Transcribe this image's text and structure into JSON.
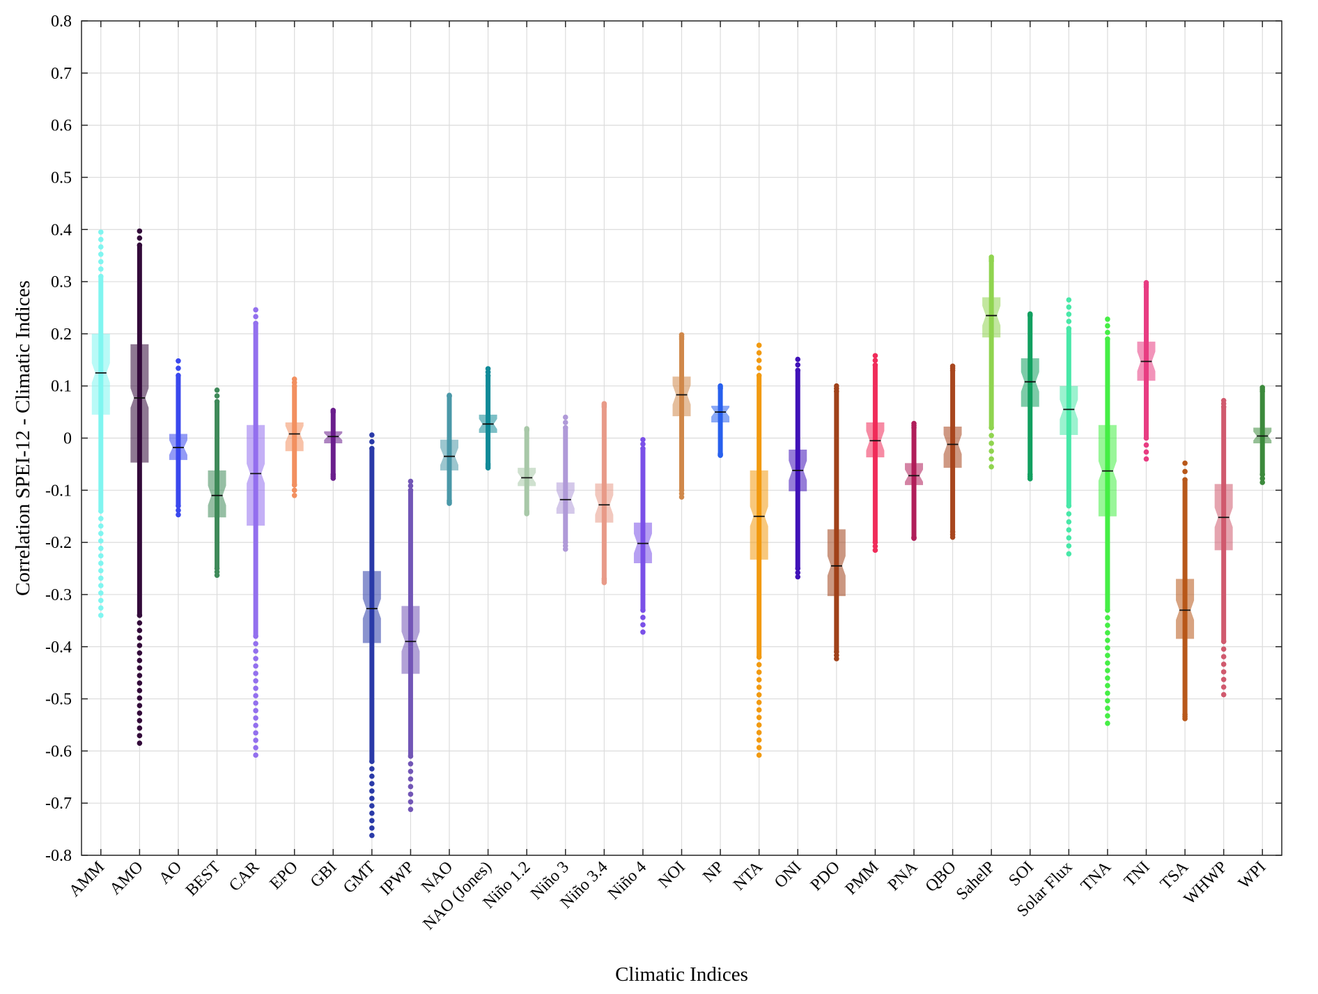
{
  "chart_data": {
    "type": "boxplot",
    "xlabel": "Climatic Indices",
    "ylabel": "Correlation SPEI-12 - Climatic Indices",
    "ylim": [
      -0.8,
      0.8
    ],
    "yticks": [
      -0.8,
      -0.7,
      -0.6,
      -0.5,
      -0.4,
      -0.3,
      -0.2,
      -0.1,
      0,
      0.1,
      0.2,
      0.3,
      0.4,
      0.5,
      0.6,
      0.7,
      0.8
    ],
    "ytick_labels": [
      "-0.8",
      "-0.7",
      "-0.6",
      "-0.5",
      "-0.4",
      "-0.3",
      "-0.2",
      "-0.1",
      "0",
      "0.1",
      "0.2",
      "0.3",
      "0.4",
      "0.5",
      "0.6",
      "0.7",
      "0.8"
    ],
    "grid": true,
    "series": [
      {
        "name": "AMM",
        "color": "#80f5f0",
        "min": -0.34,
        "q1": 0.045,
        "median": 0.125,
        "q3": 0.2,
        "max": 0.395,
        "dense_min": -0.14,
        "dense_max": 0.31
      },
      {
        "name": "AMO",
        "color": "#330a3a",
        "min": -0.585,
        "q1": -0.047,
        "median": 0.077,
        "q3": 0.18,
        "max": 0.397,
        "dense_min": -0.34,
        "dense_max": 0.37
      },
      {
        "name": "AO",
        "color": "#3a48ee",
        "min": -0.147,
        "q1": -0.042,
        "median": -0.018,
        "q3": 0.008,
        "max": 0.148,
        "dense_min": -0.13,
        "dense_max": 0.12
      },
      {
        "name": "BEST",
        "color": "#3f8a5a",
        "min": -0.263,
        "q1": -0.152,
        "median": -0.11,
        "q3": -0.062,
        "max": 0.092,
        "dense_min": -0.25,
        "dense_max": 0.07
      },
      {
        "name": "CAR",
        "color": "#9370ee",
        "min": -0.608,
        "q1": -0.168,
        "median": -0.068,
        "q3": 0.025,
        "max": 0.246,
        "dense_min": -0.38,
        "dense_max": 0.22
      },
      {
        "name": "EPO",
        "color": "#f29060",
        "min": -0.11,
        "q1": -0.025,
        "median": 0.008,
        "q3": 0.03,
        "max": 0.113,
        "dense_min": -0.09,
        "dense_max": 0.1
      },
      {
        "name": "GBI",
        "color": "#6a1e8c",
        "min": -0.077,
        "q1": -0.01,
        "median": 0.003,
        "q3": 0.013,
        "max": 0.053,
        "dense_min": -0.07,
        "dense_max": 0.05
      },
      {
        "name": "GMT",
        "color": "#2a3aa8",
        "min": -0.762,
        "q1": -0.393,
        "median": -0.327,
        "q3": -0.255,
        "max": 0.006,
        "dense_min": -0.62,
        "dense_max": -0.02
      },
      {
        "name": "IPWP",
        "color": "#7256b6",
        "min": -0.712,
        "q1": -0.452,
        "median": -0.39,
        "q3": -0.322,
        "max": -0.083,
        "dense_min": -0.61,
        "dense_max": -0.1
      },
      {
        "name": "NAO",
        "color": "#4a98a8",
        "min": -0.125,
        "q1": -0.062,
        "median": -0.035,
        "q3": -0.003,
        "max": 0.082,
        "dense_min": -0.12,
        "dense_max": 0.08
      },
      {
        "name": "NAO (Jones)",
        "color": "#108a98",
        "min": -0.057,
        "q1": 0.01,
        "median": 0.027,
        "q3": 0.045,
        "max": 0.133,
        "dense_min": -0.05,
        "dense_max": 0.12
      },
      {
        "name": "Niño 1.2",
        "color": "#a8c8a8",
        "min": -0.145,
        "q1": -0.092,
        "median": -0.076,
        "q3": -0.057,
        "max": 0.018,
        "dense_min": -0.14,
        "dense_max": 0.015
      },
      {
        "name": "Niño 3",
        "color": "#b09ad8",
        "min": -0.213,
        "q1": -0.145,
        "median": -0.118,
        "q3": -0.085,
        "max": 0.04,
        "dense_min": -0.2,
        "dense_max": 0.02
      },
      {
        "name": "Niño 3.4",
        "color": "#e89a88",
        "min": -0.277,
        "q1": -0.162,
        "median": -0.128,
        "q3": -0.087,
        "max": 0.066,
        "dense_min": -0.27,
        "dense_max": 0.06
      },
      {
        "name": "Niño 4",
        "color": "#7a50e8",
        "min": -0.372,
        "q1": -0.24,
        "median": -0.202,
        "q3": -0.162,
        "max": -0.003,
        "dense_min": -0.33,
        "dense_max": -0.02
      },
      {
        "name": "NOI",
        "color": "#d0884a",
        "min": -0.113,
        "q1": 0.042,
        "median": 0.083,
        "q3": 0.118,
        "max": 0.198,
        "dense_min": -0.1,
        "dense_max": 0.19
      },
      {
        "name": "NP",
        "color": "#2860ee",
        "min": -0.033,
        "q1": 0.03,
        "median": 0.05,
        "q3": 0.062,
        "max": 0.1,
        "dense_min": -0.03,
        "dense_max": 0.095
      },
      {
        "name": "NTA",
        "color": "#f29a10",
        "min": -0.608,
        "q1": -0.233,
        "median": -0.15,
        "q3": -0.062,
        "max": 0.178,
        "dense_min": -0.42,
        "dense_max": 0.12
      },
      {
        "name": "ONI",
        "color": "#4012b8",
        "min": -0.266,
        "q1": -0.102,
        "median": -0.062,
        "q3": -0.022,
        "max": 0.151,
        "dense_min": -0.25,
        "dense_max": 0.13
      },
      {
        "name": "PDO",
        "color": "#a0421a",
        "min": -0.423,
        "q1": -0.303,
        "median": -0.245,
        "q3": -0.175,
        "max": 0.1,
        "dense_min": -0.41,
        "dense_max": 0.09
      },
      {
        "name": "PMM",
        "color": "#f02c5a",
        "min": -0.215,
        "q1": -0.037,
        "median": -0.005,
        "q3": 0.03,
        "max": 0.158,
        "dense_min": -0.2,
        "dense_max": 0.14
      },
      {
        "name": "PNA",
        "color": "#b01e5a",
        "min": -0.192,
        "q1": -0.09,
        "median": -0.072,
        "q3": -0.048,
        "max": 0.028,
        "dense_min": -0.19,
        "dense_max": 0.02
      },
      {
        "name": "QBO",
        "color": "#a8461e",
        "min": -0.19,
        "q1": -0.057,
        "median": -0.012,
        "q3": 0.022,
        "max": 0.138,
        "dense_min": -0.18,
        "dense_max": 0.13
      },
      {
        "name": "SahelP",
        "color": "#90d450",
        "min": -0.055,
        "q1": 0.193,
        "median": 0.235,
        "q3": 0.27,
        "max": 0.347,
        "dense_min": 0.02,
        "dense_max": 0.34
      },
      {
        "name": "SOI",
        "color": "#12a060",
        "min": -0.078,
        "q1": 0.06,
        "median": 0.108,
        "q3": 0.153,
        "max": 0.238,
        "dense_min": -0.07,
        "dense_max": 0.235
      },
      {
        "name": "Solar Flux",
        "color": "#48e8a8",
        "min": -0.222,
        "q1": 0.006,
        "median": 0.055,
        "q3": 0.1,
        "max": 0.265,
        "dense_min": -0.13,
        "dense_max": 0.21
      },
      {
        "name": "TNA",
        "color": "#46ee46",
        "min": -0.547,
        "q1": -0.15,
        "median": -0.063,
        "q3": 0.025,
        "max": 0.228,
        "dense_min": -0.33,
        "dense_max": 0.19
      },
      {
        "name": "TNI",
        "color": "#e83c82",
        "min": -0.04,
        "q1": 0.11,
        "median": 0.147,
        "q3": 0.185,
        "max": 0.298,
        "dense_min": 0.0,
        "dense_max": 0.29
      },
      {
        "name": "TSA",
        "color": "#b8581a",
        "min": -0.538,
        "q1": -0.385,
        "median": -0.33,
        "q3": -0.27,
        "max": -0.048,
        "dense_min": -0.53,
        "dense_max": -0.08
      },
      {
        "name": "WHWP",
        "color": "#d05a6e",
        "min": -0.492,
        "q1": -0.215,
        "median": -0.152,
        "q3": -0.088,
        "max": 0.072,
        "dense_min": -0.39,
        "dense_max": 0.06
      },
      {
        "name": "WPI",
        "color": "#3c8a3c",
        "min": -0.085,
        "q1": -0.01,
        "median": 0.004,
        "q3": 0.02,
        "max": 0.097,
        "dense_min": -0.07,
        "dense_max": 0.09
      }
    ]
  }
}
